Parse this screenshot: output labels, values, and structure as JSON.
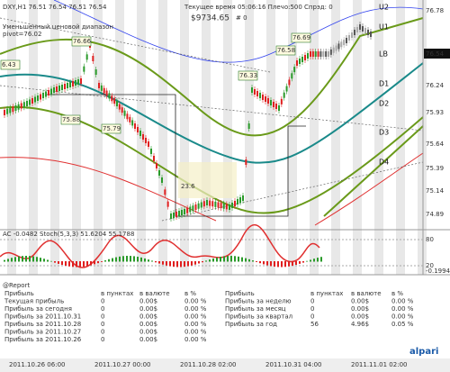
{
  "header": {
    "symbol": "DXY,H1 76.51 76.54 76.51 76.54",
    "info": "Текущее время 05:06:16 Плечо:500 Спрэд: 0",
    "balance": "$9734.65",
    "orders": "# 0",
    "range": "Уменьшенный ценовой диапазон",
    "pivot": "pivot=76.02"
  },
  "price_axis": [
    "76.78",
    "76.24",
    "75.93",
    "75.64",
    "75.39",
    "75.14",
    "74.89"
  ],
  "current_price": "76.54",
  "levels": [
    "U2",
    "U1",
    "LB",
    "D1",
    "D2",
    "D3",
    "D4"
  ],
  "boxes": [
    "6.43",
    "76.66",
    "76.33",
    "76.58",
    "76.69",
    "75.88",
    "75.79",
    "23.6"
  ],
  "indicator": {
    "title": "AC -0.0482  Stoch(5,3,3) 51.6204 55.1788",
    "axis": [
      "80",
      "20",
      "-0.1994"
    ]
  },
  "report": {
    "title": "@Report",
    "columns": [
      "в пунктах",
      "в валюте",
      "в %"
    ],
    "left": [
      [
        "Прибыль",
        "в пунктах",
        "в валюте",
        "в %"
      ],
      [
        "Текущая прибыль",
        "0",
        "0.00$",
        "0.00 %"
      ],
      [
        "Прибыль за сегодня",
        "0",
        "0.00$",
        "0.00 %"
      ],
      [
        "Прибыль за 2011.10.31",
        "0",
        "0.00$",
        "0.00 %"
      ],
      [
        "Прибыль за 2011.10.28",
        "0",
        "0.00$",
        "0.00 %"
      ],
      [
        "Прибыль за 2011.10.27",
        "0",
        "0.00$",
        "0.00 %"
      ],
      [
        "Прибыль за 2011.10.26",
        "0",
        "0.00$",
        "0.00 %"
      ]
    ],
    "right": [
      [
        "Прибыль",
        "в пунктах",
        "в валюте",
        "в %"
      ],
      [
        "Прибыль за неделю",
        "0",
        "0.00$",
        "0.00 %"
      ],
      [
        "Прибыль за месяц",
        "0",
        "0.00$",
        "0.00 %"
      ],
      [
        "Прибыль за квартал",
        "0",
        "0.00$",
        "0.00 %"
      ],
      [
        "Прибыль за год",
        "56",
        "4.96$",
        "0.05 %"
      ]
    ]
  },
  "time_axis": [
    "2011.10.26 06:00",
    "2011.10.27 00:00",
    "2011.10.28 02:00",
    "2011.10.31 04:00",
    "2011.11.01 02:00"
  ],
  "logo": "alpari"
}
